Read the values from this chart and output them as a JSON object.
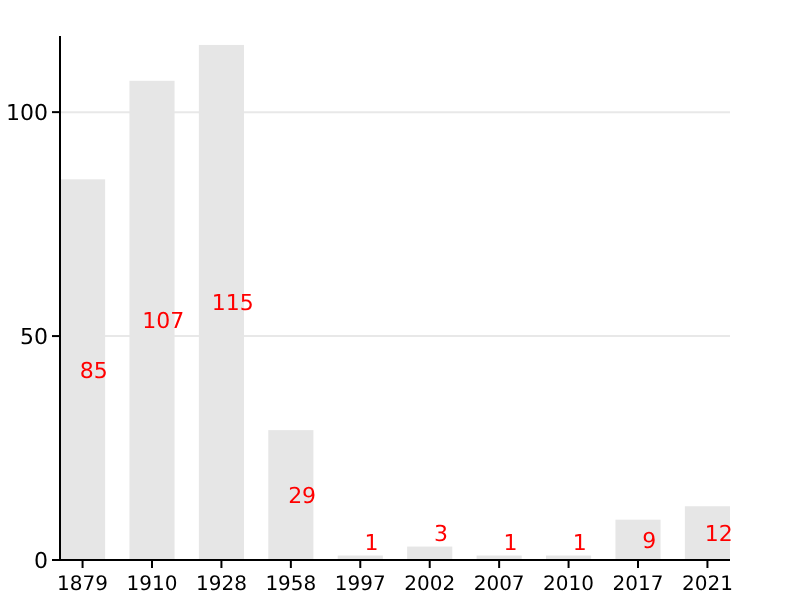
{
  "chart_data": {
    "type": "bar",
    "categories": [
      "1879",
      "1910",
      "1928",
      "1958",
      "1997",
      "2002",
      "2007",
      "2010",
      "2017",
      "2021"
    ],
    "values": [
      85,
      107,
      115,
      29,
      1,
      3,
      1,
      1,
      9,
      12
    ],
    "color": "#e6e6e6",
    "ylim": [
      0,
      117
    ],
    "yticks": [
      0,
      50,
      100
    ],
    "grid": "y",
    "data_labels": true
  }
}
